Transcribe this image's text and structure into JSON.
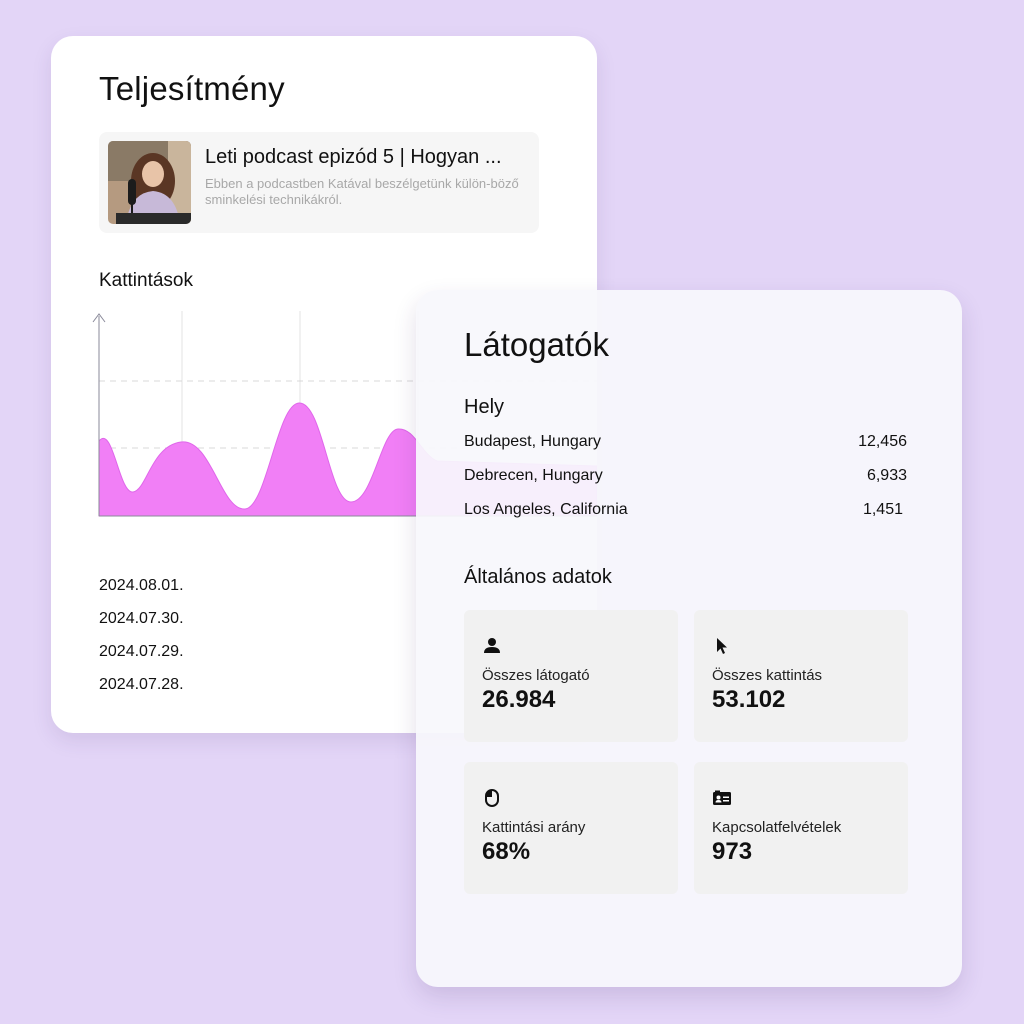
{
  "performance": {
    "title": "Teljesítmény",
    "podcast": {
      "title": "Leti podcast epizód 5 | Hogyan ...",
      "description": "Ebben a podcastben Katával beszélgetünk külön-böző sminkelési technikákról."
    },
    "clicks_label": "Kattintások",
    "dates": [
      "2024.08.01.",
      "2024.07.30.",
      "2024.07.29.",
      "2024.07.28."
    ]
  },
  "visitors": {
    "title": "Látogatók",
    "location_label": "Hely",
    "locations": [
      {
        "name": "Budapest, Hungary",
        "value": "12,456"
      },
      {
        "name": "Debrecen, Hungary",
        "value": "6,933"
      },
      {
        "name": "Los Angeles, California",
        "value": "1,451"
      }
    ],
    "general_label": "Általános adatok",
    "stats": [
      {
        "icon": "user-icon",
        "label": "Összes látogató",
        "value": "26.984"
      },
      {
        "icon": "cursor-icon",
        "label": "Összes kattintás",
        "value": "53.102"
      },
      {
        "icon": "mouse-icon",
        "label": "Kattintási arány",
        "value": "68%"
      },
      {
        "icon": "contact-card-icon",
        "label": "Kapcsolatfelvételek",
        "value": "973"
      }
    ]
  },
  "colors": {
    "background": "#e3d5f7",
    "chart_fill": "#f17ff6",
    "chart_stroke": "#e067ea"
  }
}
